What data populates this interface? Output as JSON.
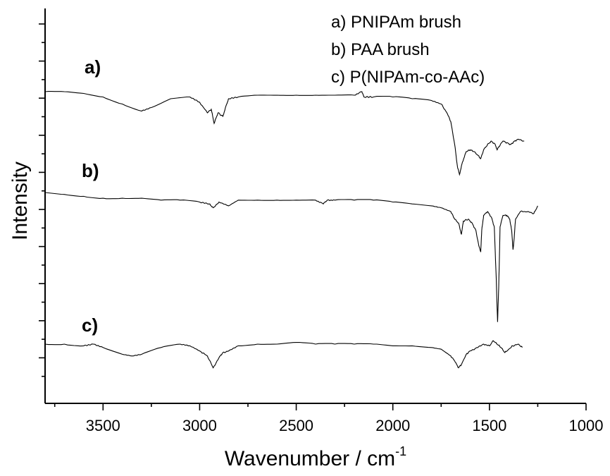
{
  "chart_data": {
    "type": "line",
    "xlabel": "Wavenumber / cm",
    "xlabel_superscript": "-1",
    "ylabel": "Intensity",
    "xlim": [
      3800,
      1000
    ],
    "x_reversed": true,
    "xticks": [
      3500,
      3000,
      2500,
      2000,
      1500,
      1000
    ],
    "y_tick_labels_shown": false,
    "grid": false,
    "legend_position": "top-right",
    "legend": [
      "a)  PNIPAm brush",
      "b)  PAA brush",
      "c)  P(NIPAm-co-AAc)"
    ],
    "series_labels": [
      "a)",
      "b)",
      "c)"
    ],
    "series": [
      {
        "label": "a)",
        "points": [
          [
            3800,
            1.0
          ],
          [
            3700,
            1.0
          ],
          [
            3600,
            0.99
          ],
          [
            3500,
            0.97
          ],
          [
            3400,
            0.93
          ],
          [
            3300,
            0.89
          ],
          [
            3250,
            0.91
          ],
          [
            3150,
            0.96
          ],
          [
            3050,
            0.97
          ],
          [
            3000,
            0.94
          ],
          [
            2960,
            0.88
          ],
          [
            2940,
            0.9
          ],
          [
            2925,
            0.82
          ],
          [
            2905,
            0.88
          ],
          [
            2880,
            0.86
          ],
          [
            2860,
            0.93
          ],
          [
            2850,
            0.96
          ],
          [
            2800,
            0.97
          ],
          [
            2700,
            0.98
          ],
          [
            2600,
            0.98
          ],
          [
            2500,
            0.98
          ],
          [
            2400,
            0.98
          ],
          [
            2300,
            0.98
          ],
          [
            2200,
            0.98
          ],
          [
            2160,
            1.0
          ],
          [
            2150,
            0.97
          ],
          [
            2100,
            0.97
          ],
          [
            2000,
            0.97
          ],
          [
            1900,
            0.96
          ],
          [
            1800,
            0.95
          ],
          [
            1750,
            0.93
          ],
          [
            1720,
            0.88
          ],
          [
            1700,
            0.83
          ],
          [
            1680,
            0.7
          ],
          [
            1665,
            0.57
          ],
          [
            1655,
            0.53
          ],
          [
            1640,
            0.6
          ],
          [
            1620,
            0.66
          ],
          [
            1600,
            0.67
          ],
          [
            1580,
            0.66
          ],
          [
            1560,
            0.64
          ],
          [
            1545,
            0.62
          ],
          [
            1530,
            0.67
          ],
          [
            1510,
            0.7
          ],
          [
            1490,
            0.72
          ],
          [
            1470,
            0.7
          ],
          [
            1460,
            0.67
          ],
          [
            1450,
            0.69
          ],
          [
            1430,
            0.72
          ],
          [
            1410,
            0.71
          ],
          [
            1390,
            0.7
          ],
          [
            1370,
            0.72
          ],
          [
            1350,
            0.73
          ],
          [
            1320,
            0.72
          ]
        ]
      },
      {
        "label": "b)",
        "points": [
          [
            3800,
            1.0
          ],
          [
            3700,
            0.99
          ],
          [
            3600,
            0.98
          ],
          [
            3500,
            0.97
          ],
          [
            3400,
            0.97
          ],
          [
            3300,
            0.97
          ],
          [
            3200,
            0.96
          ],
          [
            3100,
            0.96
          ],
          [
            3000,
            0.95
          ],
          [
            2950,
            0.94
          ],
          [
            2930,
            0.92
          ],
          [
            2900,
            0.95
          ],
          [
            2850,
            0.93
          ],
          [
            2800,
            0.96
          ],
          [
            2700,
            0.96
          ],
          [
            2600,
            0.96
          ],
          [
            2500,
            0.96
          ],
          [
            2400,
            0.96
          ],
          [
            2360,
            0.94
          ],
          [
            2340,
            0.96
          ],
          [
            2300,
            0.96
          ],
          [
            2200,
            0.96
          ],
          [
            2100,
            0.96
          ],
          [
            2000,
            0.95
          ],
          [
            1900,
            0.94
          ],
          [
            1800,
            0.93
          ],
          [
            1750,
            0.92
          ],
          [
            1700,
            0.9
          ],
          [
            1680,
            0.86
          ],
          [
            1660,
            0.84
          ],
          [
            1645,
            0.78
          ],
          [
            1635,
            0.85
          ],
          [
            1610,
            0.86
          ],
          [
            1590,
            0.84
          ],
          [
            1570,
            0.8
          ],
          [
            1555,
            0.72
          ],
          [
            1545,
            0.69
          ],
          [
            1540,
            0.8
          ],
          [
            1530,
            0.88
          ],
          [
            1510,
            0.9
          ],
          [
            1490,
            0.87
          ],
          [
            1475,
            0.82
          ],
          [
            1465,
            0.55
          ],
          [
            1458,
            0.32
          ],
          [
            1452,
            0.5
          ],
          [
            1445,
            0.82
          ],
          [
            1430,
            0.88
          ],
          [
            1410,
            0.88
          ],
          [
            1395,
            0.86
          ],
          [
            1385,
            0.8
          ],
          [
            1378,
            0.7
          ],
          [
            1372,
            0.76
          ],
          [
            1365,
            0.86
          ],
          [
            1340,
            0.9
          ],
          [
            1300,
            0.9
          ],
          [
            1270,
            0.89
          ],
          [
            1250,
            0.93
          ]
        ]
      },
      {
        "label": "c)",
        "points": [
          [
            3800,
            1.0
          ],
          [
            3700,
            1.0
          ],
          [
            3600,
            0.99
          ],
          [
            3550,
            1.0
          ],
          [
            3500,
            0.98
          ],
          [
            3400,
            0.94
          ],
          [
            3350,
            0.93
          ],
          [
            3300,
            0.94
          ],
          [
            3200,
            0.98
          ],
          [
            3100,
            1.0
          ],
          [
            3050,
            0.99
          ],
          [
            3000,
            0.96
          ],
          [
            2960,
            0.93
          ],
          [
            2930,
            0.86
          ],
          [
            2900,
            0.92
          ],
          [
            2880,
            0.95
          ],
          [
            2850,
            0.96
          ],
          [
            2800,
            0.99
          ],
          [
            2700,
            1.0
          ],
          [
            2600,
            1.0
          ],
          [
            2500,
            1.01
          ],
          [
            2400,
            1.0
          ],
          [
            2300,
            1.0
          ],
          [
            2200,
            1.0
          ],
          [
            2100,
            1.0
          ],
          [
            2000,
            0.99
          ],
          [
            1900,
            0.99
          ],
          [
            1800,
            0.98
          ],
          [
            1750,
            0.97
          ],
          [
            1700,
            0.93
          ],
          [
            1680,
            0.9
          ],
          [
            1660,
            0.86
          ],
          [
            1645,
            0.88
          ],
          [
            1620,
            0.94
          ],
          [
            1600,
            0.96
          ],
          [
            1560,
            0.98
          ],
          [
            1530,
            1.0
          ],
          [
            1500,
            0.99
          ],
          [
            1480,
            1.02
          ],
          [
            1460,
            1.0
          ],
          [
            1440,
            0.98
          ],
          [
            1420,
            0.95
          ],
          [
            1400,
            0.97
          ],
          [
            1380,
            0.99
          ],
          [
            1350,
            1.0
          ],
          [
            1330,
            0.98
          ]
        ]
      }
    ]
  }
}
